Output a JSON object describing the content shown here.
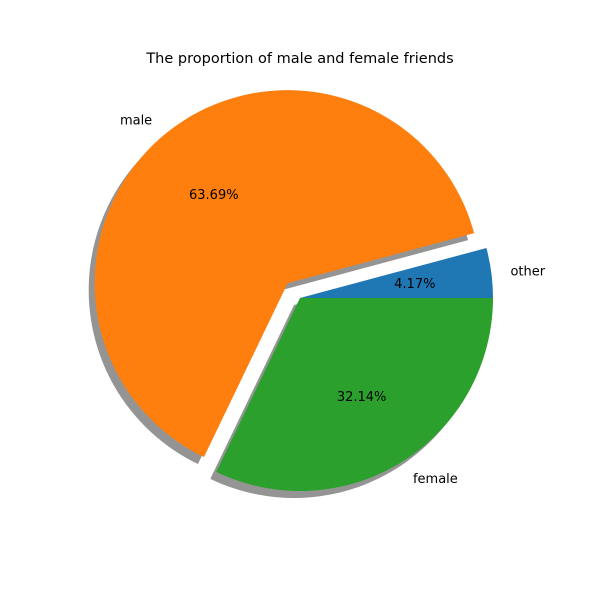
{
  "chart_data": {
    "type": "pie",
    "title": "The proportion of male and female friends",
    "labels": [
      "other",
      "male",
      "female"
    ],
    "values": [
      4.17,
      63.69,
      32.14
    ],
    "percent_labels": [
      "4.17%",
      "63.69%",
      "32.14%"
    ],
    "colors": [
      "#1f77b4",
      "#ff7f0e",
      "#2ca02c"
    ],
    "explode": [
      0,
      0.1,
      0
    ],
    "shadow": true,
    "start_angle_deg": 0,
    "direction": "counterclockwise",
    "legend": "none"
  }
}
